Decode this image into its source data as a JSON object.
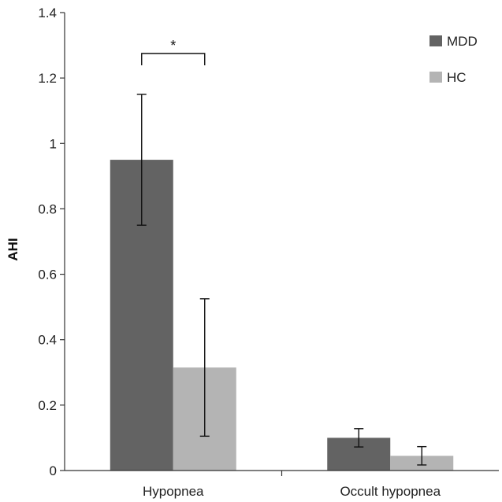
{
  "chart_data": {
    "type": "bar",
    "ylabel": "AHI",
    "xlabel": "",
    "ylim": [
      0,
      1.4
    ],
    "yticks": [
      "0",
      "0.2",
      "0.4",
      "0.6",
      "0.8",
      "1",
      "1.2",
      "1.4"
    ],
    "categories": [
      "Hypopnea",
      "Occult hypopnea"
    ],
    "series": [
      {
        "name": "MDD",
        "color": "#636363",
        "values": [
          0.95,
          0.1
        ],
        "error": [
          0.2,
          0.028
        ]
      },
      {
        "name": "HC",
        "color": "#b4b4b4",
        "values": [
          0.315,
          0.045
        ],
        "error": [
          0.21,
          0.028
        ]
      }
    ],
    "legend": {
      "position": "top-right"
    },
    "grid": false,
    "annotations": [
      {
        "text": "*",
        "category": "Hypopnea",
        "type": "significance-bracket"
      }
    ]
  }
}
